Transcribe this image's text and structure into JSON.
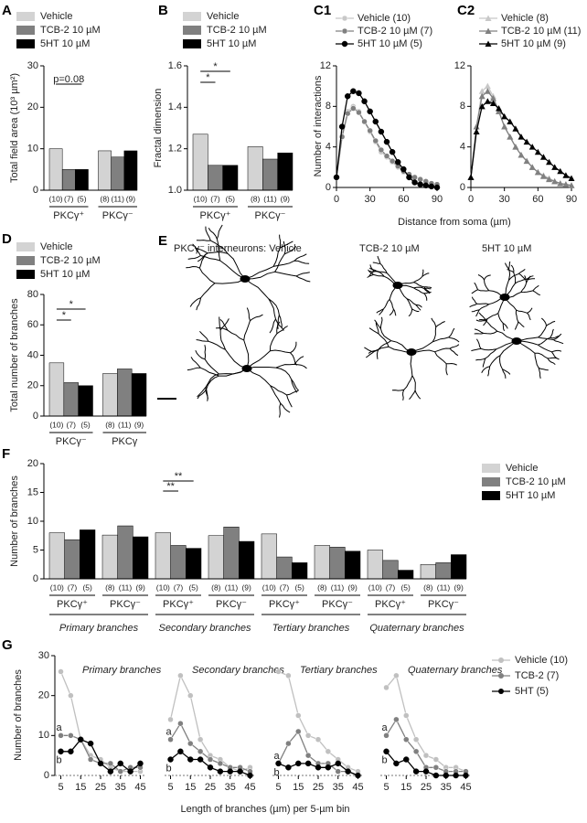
{
  "chart_data": [
    {
      "panel": "A",
      "type": "bar",
      "ylabel": "Total field area (10³ µm²)",
      "ylim": [
        0,
        30
      ],
      "yticks": [
        0,
        10,
        20,
        30
      ],
      "categories": [
        "PKCγ⁺",
        "PKCγ⁻"
      ],
      "legend_position": "upper left",
      "series": [
        {
          "name": "Vehicle",
          "color": "#d3d3d3",
          "values": [
            10,
            9.5
          ],
          "n_labels": [
            "(10)",
            "(8)"
          ]
        },
        {
          "name": "TCB-2 10 µM",
          "color": "#808080",
          "values": [
            5,
            8
          ],
          "n_labels": [
            "(7)",
            "(11)"
          ]
        },
        {
          "name": "5HT 10 µM",
          "color": "#000000",
          "values": [
            5,
            9.5
          ],
          "n_labels": [
            "(5)",
            "(9)"
          ]
        }
      ],
      "annotations": [
        "p=0.08"
      ]
    },
    {
      "panel": "B",
      "type": "bar",
      "ylabel": "Fractal dimension",
      "ylim": [
        1,
        1.6
      ],
      "yticks": [
        {
          "value": 1,
          "label": "1.0"
        },
        1.2,
        1.4,
        1.6
      ],
      "categories": [
        "PKCγ⁺",
        "PKCγ⁻"
      ],
      "legend_position": "upper left",
      "series": [
        {
          "name": "Vehicle",
          "color": "#d3d3d3",
          "values": [
            1.27,
            1.21
          ],
          "n_labels": [
            "(10)",
            "(8)"
          ]
        },
        {
          "name": "TCB-2 10 µM",
          "color": "#808080",
          "values": [
            1.12,
            1.15
          ],
          "n_labels": [
            "(7)",
            "(11)"
          ]
        },
        {
          "name": "5HT 10 µM",
          "color": "#000000",
          "values": [
            1.12,
            1.18
          ],
          "n_labels": [
            "(5)",
            "(9)"
          ]
        }
      ],
      "annotations": [
        "*",
        "*"
      ]
    },
    {
      "type": "line",
      "xlabel": "Distance from soma (µm)",
      "ylabel": "Number of interactions",
      "x": [
        0,
        5,
        10,
        15,
        20,
        25,
        30,
        35,
        40,
        45,
        50,
        55,
        60,
        65,
        70,
        75,
        80,
        85,
        90
      ],
      "xlim": [
        0,
        90
      ],
      "xticks": [
        0,
        30,
        60,
        90
      ],
      "ylim": [
        0,
        12
      ],
      "yticks": [
        0,
        4,
        8,
        12
      ],
      "subplots": [
        {
          "label": "C1",
          "marker": "circle",
          "series": [
            {
              "name": "Vehicle (10)",
              "color": "#c8c8c8",
              "values": [
                1,
                5,
                7.5,
                8,
                7.5,
                6.5,
                5.5,
                4.5,
                3.5,
                3,
                2.5,
                2,
                1.5,
                1.2,
                1,
                0.8,
                0.6,
                0.4,
                0.3
              ]
            },
            {
              "name": "TCB-2 10 µM (7)",
              "color": "#808080",
              "values": [
                1,
                5,
                7.3,
                7.8,
                7.4,
                6.5,
                5.6,
                4.6,
                3.7,
                3.1,
                2.6,
                2.1,
                1.6,
                1.3,
                1,
                0.8,
                0.6,
                0.4,
                0.3
              ]
            },
            {
              "name": "5HT 10 µM (5)",
              "color": "#000000",
              "values": [
                1,
                6,
                9,
                9.5,
                9.3,
                8.5,
                7.5,
                6.5,
                5.5,
                4.5,
                3.5,
                2.5,
                1.8,
                1,
                0.5,
                0.3,
                0.2,
                0.1,
                0
              ]
            }
          ]
        },
        {
          "label": "C2",
          "marker": "triangle",
          "series": [
            {
              "name": "Vehicle (8)",
              "color": "#c8c8c8",
              "values": [
                1,
                6,
                9.5,
                10,
                9,
                7.5,
                6,
                5,
                4,
                3.2,
                2.6,
                2,
                1.5,
                1.2,
                0.9,
                0.6,
                0.4,
                0.3,
                0.2
              ]
            },
            {
              "name": "TCB-2 10 µM (11)",
              "color": "#808080",
              "values": [
                1,
                6,
                9,
                9.5,
                8.8,
                7.5,
                6,
                5,
                4,
                3.2,
                2.6,
                2,
                1.5,
                1.1,
                0.8,
                0.6,
                0.4,
                0.3,
                0.2
              ]
            },
            {
              "name": "5HT 10 µM (9)",
              "color": "#000000",
              "values": [
                1,
                5.5,
                8,
                8.5,
                8.3,
                7.8,
                7,
                6.5,
                5.8,
                5,
                4.5,
                4,
                3.5,
                3,
                2.5,
                2,
                1.6,
                1.2,
                0.9
              ]
            }
          ]
        }
      ]
    },
    {
      "panel": "D",
      "type": "bar",
      "ylabel": "Total number of branches",
      "ylim": [
        0,
        80
      ],
      "yticks": [
        0,
        20,
        40,
        60,
        80
      ],
      "categories": [
        "PKCγ⁻",
        "PKCγ"
      ],
      "legend_position": "upper left",
      "series": [
        {
          "name": "Vehicle",
          "color": "#d3d3d3",
          "values": [
            35,
            28
          ],
          "n_labels": [
            "(10)",
            "(8)"
          ]
        },
        {
          "name": "TCB-2 10 µM",
          "color": "#808080",
          "values": [
            22,
            31
          ],
          "n_labels": [
            "(7)",
            "(11)"
          ]
        },
        {
          "name": "5HT 10 µM",
          "color": "#000000",
          "values": [
            20,
            28
          ],
          "n_labels": [
            "(5)",
            "(9)"
          ]
        }
      ],
      "annotations": [
        "*",
        "*"
      ]
    },
    {
      "panel": "E",
      "type": "image",
      "captions": [
        "PKCγ⁻ interneurons: Vehicle",
        "TCB-2 10 µM",
        "5HT 10 µM"
      ]
    },
    {
      "panel": "F",
      "type": "bar",
      "ylabel": "Number of branches",
      "ylim": [
        0,
        20
      ],
      "yticks": [
        0,
        5,
        10,
        15,
        20
      ],
      "categories": [
        "PKCγ⁺",
        "PKCγ⁻",
        "PKCγ⁺",
        "PKCγ⁻",
        "PKCγ⁺",
        "PKCγ⁻",
        "PKCγ⁺",
        "PKCγ⁻"
      ],
      "sections": [
        "Primary branches",
        "Secondary branches",
        "Tertiary branches",
        "Quaternary branches"
      ],
      "legend_position": "right",
      "series": [
        {
          "name": "Vehicle",
          "color": "#d3d3d3",
          "values": [
            8,
            7.6,
            8,
            7.5,
            7.8,
            5.8,
            5,
            2.5
          ],
          "n_labels": [
            "(10)",
            "(8)",
            "(10)",
            "(8)",
            "(10)",
            "(8)",
            "(10)",
            "(8)"
          ]
        },
        {
          "name": "TCB-2 10 µM",
          "color": "#808080",
          "values": [
            6.8,
            9.2,
            5.8,
            9,
            3.8,
            5.5,
            3.2,
            2.8
          ],
          "n_labels": [
            "(7)",
            "(11)",
            "(7)",
            "(11)",
            "(7)",
            "(11)",
            "(7)",
            "(11)"
          ]
        },
        {
          "name": "5HT 10 µM",
          "color": "#000000",
          "values": [
            8.5,
            7.3,
            5.3,
            6.5,
            2.8,
            4.8,
            1.5,
            4.2
          ],
          "n_labels": [
            "(5)",
            "(9)",
            "(5)",
            "(9)",
            "(5)",
            "(9)",
            "(5)",
            "(9)"
          ]
        }
      ],
      "annotations": [
        "**",
        "**"
      ]
    },
    {
      "panel": "G",
      "type": "line",
      "xlabel": "Length of branches (µm) per 5-µm bin",
      "ylabel": "Number of branches",
      "x": [
        5,
        10,
        15,
        20,
        25,
        30,
        35,
        40,
        45
      ],
      "xlim": [
        2,
        48
      ],
      "xticks": [
        5,
        15,
        25,
        35,
        45
      ],
      "ylim": [
        0,
        30
      ],
      "yticks": [
        0,
        10,
        20,
        30
      ],
      "legend": [
        {
          "name": "Vehicle (10)",
          "color": "#c0c0c0"
        },
        {
          "name": "TCB-2 (7)",
          "color": "#808080"
        },
        {
          "name": "5HT (5)",
          "color": "#000000"
        }
      ],
      "subplots": [
        {
          "title": "Primary branches",
          "annotations": [
            "a",
            "b"
          ],
          "series": [
            {
              "values": [
                26,
                20,
                9,
                5,
                4,
                2,
                1,
                1,
                1
              ]
            },
            {
              "values": [
                10,
                10,
                9,
                4,
                3,
                3,
                1,
                2,
                2
              ]
            },
            {
              "values": [
                6,
                6,
                9,
                8,
                3,
                1,
                3,
                1,
                3
              ]
            }
          ]
        },
        {
          "title": "Secondary branches",
          "annotations": [
            "a",
            "b"
          ],
          "series": [
            {
              "values": [
                14,
                25,
                20,
                9,
                5,
                4,
                2,
                1,
                2
              ]
            },
            {
              "values": [
                9,
                13,
                8,
                6,
                4,
                3,
                2,
                2,
                1
              ]
            },
            {
              "values": [
                4,
                6,
                4,
                4,
                2,
                1,
                1,
                1,
                0
              ]
            }
          ]
        },
        {
          "title": "Tertiary branches",
          "annotations": [
            "a",
            "b"
          ],
          "series": [
            {
              "values": [
                26,
                25,
                15,
                10,
                9,
                6,
                4,
                2,
                1
              ]
            },
            {
              "values": [
                3,
                8,
                11,
                5,
                3,
                3,
                1,
                1,
                0
              ]
            },
            {
              "values": [
                3,
                2,
                3,
                3,
                2,
                2,
                3,
                1,
                0
              ]
            }
          ]
        },
        {
          "title": "Quaternary branches",
          "annotations": [
            "a",
            "b"
          ],
          "series": [
            {
              "values": [
                22,
                25,
                15,
                9,
                5,
                4,
                2,
                2,
                1
              ]
            },
            {
              "values": [
                10,
                14,
                9,
                6,
                2,
                2,
                1,
                1,
                1
              ]
            },
            {
              "values": [
                6,
                3,
                4,
                1,
                1,
                0,
                0,
                0,
                0
              ]
            }
          ]
        }
      ]
    }
  ]
}
